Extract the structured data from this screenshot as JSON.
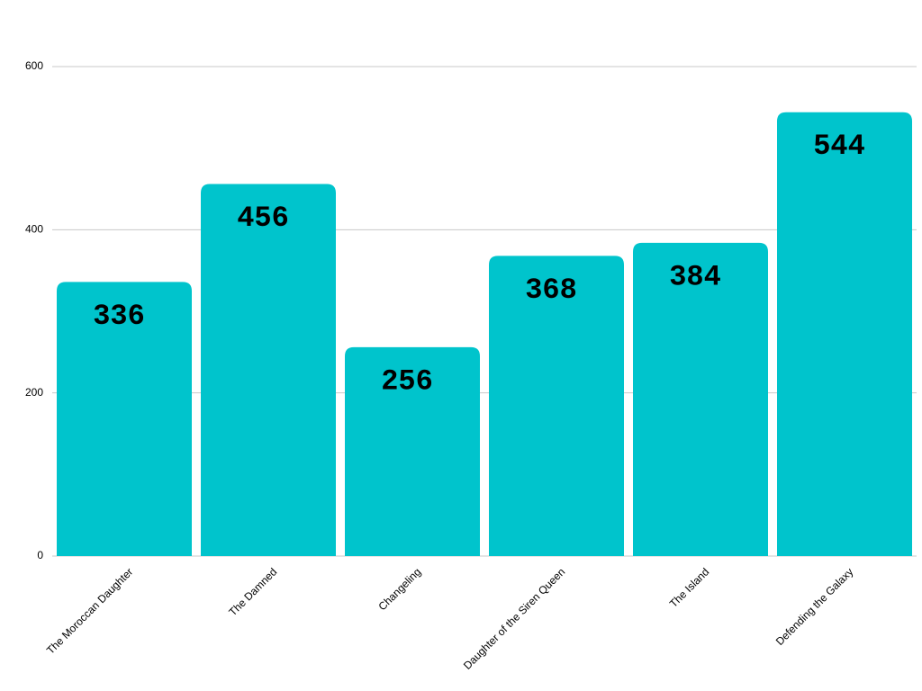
{
  "chart_data": {
    "type": "bar",
    "categories": [
      "The Moroccan Daughter",
      "The Damned",
      "Changeling",
      "Daughter of the Siren Queen",
      "The Island",
      "Defending the Galaxy"
    ],
    "values": [
      336,
      456,
      256,
      368,
      384,
      544
    ],
    "color": "#00c4cc",
    "ylim": [
      0,
      600
    ],
    "yticks": [
      0,
      200,
      400,
      600
    ],
    "grid": true
  }
}
